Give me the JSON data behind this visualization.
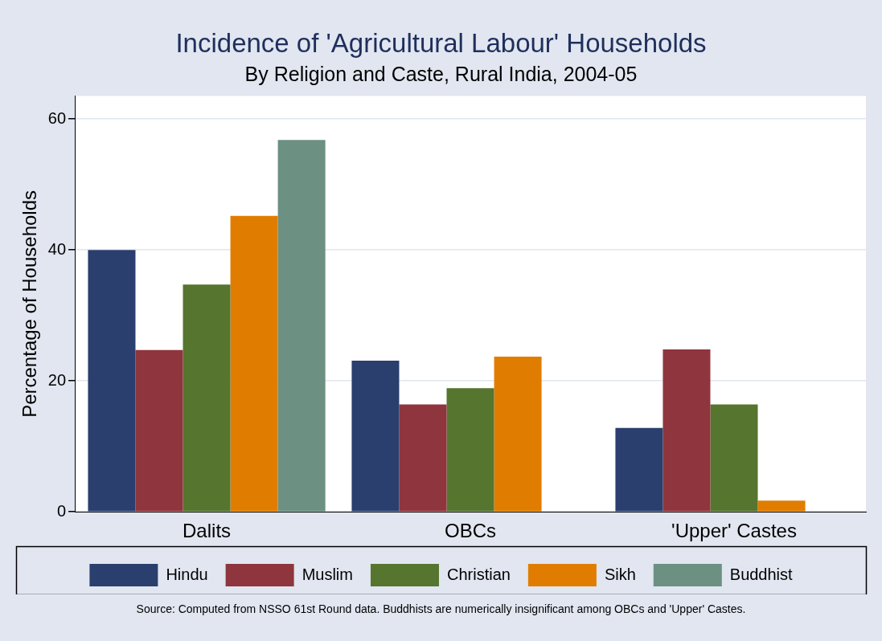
{
  "chart_data": {
    "type": "bar",
    "title": "Incidence of 'Agricultural Labour' Households",
    "subtitle": "By Religion and Caste, Rural India, 2004-05",
    "ylabel": "Percentage of Households",
    "categories": [
      "Dalits",
      "OBCs",
      "'Upper' Castes"
    ],
    "series": [
      {
        "name": "Hindu",
        "color": "#2a3f6e",
        "values": [
          40.0,
          23.1,
          12.8
        ]
      },
      {
        "name": "Muslim",
        "color": "#8f353d",
        "values": [
          24.7,
          16.4,
          24.8
        ]
      },
      {
        "name": "Christian",
        "color": "#56752f",
        "values": [
          34.7,
          18.9,
          16.4
        ]
      },
      {
        "name": "Sikh",
        "color": "#e07d00",
        "values": [
          45.2,
          23.7,
          1.7
        ]
      },
      {
        "name": "Buddhist",
        "color": "#6c9082",
        "values": [
          56.8,
          null,
          null
        ]
      }
    ],
    "ylim": [
      0,
      63.5
    ],
    "yticks": [
      0,
      20,
      40,
      60
    ],
    "grid": "y",
    "legend": "bottom",
    "annotations": [
      "Source: Computed from NSSO 61st Round data.  Buddhists are numerically insignificant among OBCs and 'Upper' Castes."
    ]
  }
}
